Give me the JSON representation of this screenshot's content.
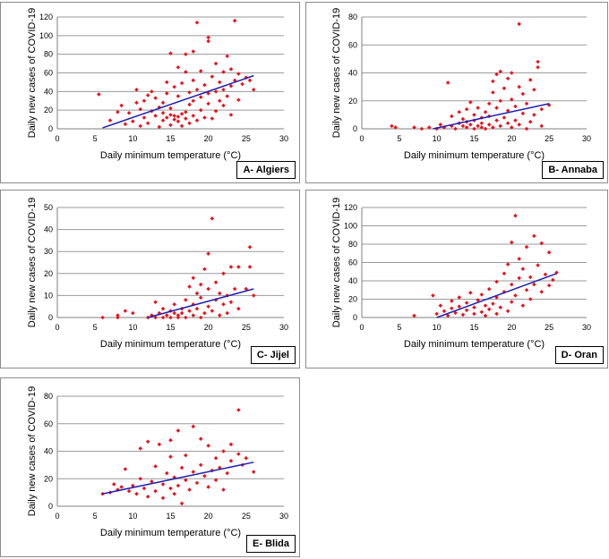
{
  "chart_data": [
    {
      "type": "scatter",
      "panel_label": "A- Algiers",
      "xlabel": "Daily minimum temperature (°C)",
      "ylabel": "Daily new cases of COVID-19",
      "xlim": [
        0,
        30
      ],
      "ylim": [
        0,
        120
      ],
      "xticks": [
        0,
        5,
        10,
        15,
        20,
        25,
        30
      ],
      "yticks": [
        0,
        20,
        40,
        60,
        80,
        100,
        120
      ],
      "colors": {
        "points": "#e8141c",
        "trend": "#1f1fb4"
      },
      "trendline": {
        "x": [
          6,
          26
        ],
        "y": [
          1,
          57
        ]
      },
      "points": [
        [
          5.5,
          37
        ],
        [
          7,
          9
        ],
        [
          8,
          18
        ],
        [
          8.5,
          25
        ],
        [
          9,
          5
        ],
        [
          9.5,
          17
        ],
        [
          10,
          8
        ],
        [
          10.5,
          42
        ],
        [
          10.5,
          28
        ],
        [
          11,
          3
        ],
        [
          11,
          21
        ],
        [
          11.5,
          12
        ],
        [
          11.5,
          30
        ],
        [
          12,
          36
        ],
        [
          12,
          6
        ],
        [
          12.5,
          19
        ],
        [
          12.5,
          40
        ],
        [
          13,
          14
        ],
        [
          13,
          33
        ],
        [
          13.5,
          2
        ],
        [
          13.5,
          23
        ],
        [
          14,
          9
        ],
        [
          14,
          17
        ],
        [
          14,
          28
        ],
        [
          14.5,
          12
        ],
        [
          14.5,
          38
        ],
        [
          14.5,
          50
        ],
        [
          15,
          4
        ],
        [
          15,
          15
        ],
        [
          15,
          22
        ],
        [
          15,
          81
        ],
        [
          15.5,
          10
        ],
        [
          15.5,
          14
        ],
        [
          15.5,
          45
        ],
        [
          16,
          8
        ],
        [
          16,
          13
        ],
        [
          16,
          35
        ],
        [
          16,
          66
        ],
        [
          16.5,
          3
        ],
        [
          16.5,
          16
        ],
        [
          16.5,
          49
        ],
        [
          17,
          11
        ],
        [
          17,
          18
        ],
        [
          17,
          80
        ],
        [
          17,
          61
        ],
        [
          17.5,
          6
        ],
        [
          17.5,
          26
        ],
        [
          17.5,
          39
        ],
        [
          18,
          14
        ],
        [
          18,
          30
        ],
        [
          18,
          52
        ],
        [
          18,
          83
        ],
        [
          18.5,
          9
        ],
        [
          18.5,
          114
        ],
        [
          18.5,
          42
        ],
        [
          19,
          20
        ],
        [
          19,
          34
        ],
        [
          19,
          62
        ],
        [
          19.5,
          12
        ],
        [
          19.5,
          47
        ],
        [
          20,
          27
        ],
        [
          20,
          98
        ],
        [
          20,
          94
        ],
        [
          20,
          38
        ],
        [
          20.5,
          11
        ],
        [
          20.5,
          56
        ],
        [
          21,
          19
        ],
        [
          21,
          40
        ],
        [
          21,
          70
        ],
        [
          21.5,
          30
        ],
        [
          21.5,
          50
        ],
        [
          22,
          25
        ],
        [
          22,
          61
        ],
        [
          22,
          42
        ],
        [
          22.5,
          35
        ],
        [
          22.5,
          78
        ],
        [
          23,
          46
        ],
        [
          23,
          64
        ],
        [
          23,
          15
        ],
        [
          23.5,
          52
        ],
        [
          23.5,
          116
        ],
        [
          24,
          31
        ],
        [
          24,
          59
        ],
        [
          24.5,
          48
        ],
        [
          25,
          55
        ],
        [
          25.5,
          52
        ],
        [
          26,
          42
        ]
      ]
    },
    {
      "type": "scatter",
      "panel_label": "B- Annaba",
      "xlabel": "Daily minimum temperature (°C)",
      "ylabel": "Daily new cases of COVID-19",
      "xlim": [
        0,
        30
      ],
      "ylim": [
        0,
        80
      ],
      "xticks": [
        0,
        5,
        10,
        15,
        20,
        25,
        30
      ],
      "yticks": [
        0,
        20,
        40,
        60,
        80
      ],
      "colors": {
        "points": "#e8141c",
        "trend": "#1f1fb4"
      },
      "trendline": {
        "x": [
          9.5,
          25
        ],
        "y": [
          0,
          18
        ]
      },
      "points": [
        [
          4,
          2
        ],
        [
          4.5,
          1
        ],
        [
          7,
          1
        ],
        [
          8,
          0
        ],
        [
          9,
          1
        ],
        [
          10,
          0
        ],
        [
          10.5,
          3
        ],
        [
          11,
          1
        ],
        [
          11.5,
          33
        ],
        [
          12,
          2
        ],
        [
          12,
          9
        ],
        [
          12.5,
          0
        ],
        [
          13,
          4
        ],
        [
          13,
          12
        ],
        [
          13.5,
          2
        ],
        [
          13.5,
          7
        ],
        [
          14,
          1
        ],
        [
          14,
          5
        ],
        [
          14,
          14
        ],
        [
          14.5,
          3
        ],
        [
          14.5,
          19
        ],
        [
          15,
          0
        ],
        [
          15,
          6
        ],
        [
          15,
          10
        ],
        [
          15.5,
          2
        ],
        [
          15.5,
          15
        ],
        [
          16,
          1
        ],
        [
          16,
          4
        ],
        [
          16,
          8
        ],
        [
          16.5,
          0
        ],
        [
          16.5,
          12
        ],
        [
          17,
          3
        ],
        [
          17,
          9
        ],
        [
          17,
          18
        ],
        [
          17.5,
          1
        ],
        [
          17.5,
          26
        ],
        [
          17.5,
          34
        ],
        [
          18,
          6
        ],
        [
          18,
          15
        ],
        [
          18,
          39
        ],
        [
          18.5,
          2
        ],
        [
          18.5,
          20
        ],
        [
          18.5,
          41
        ],
        [
          19,
          8
        ],
        [
          19,
          29
        ],
        [
          19.5,
          4
        ],
        [
          19.5,
          13
        ],
        [
          19.5,
          36
        ],
        [
          20,
          1
        ],
        [
          20,
          21
        ],
        [
          20,
          40
        ],
        [
          20.5,
          6
        ],
        [
          20.5,
          16
        ],
        [
          21,
          75
        ],
        [
          21,
          3
        ],
        [
          21,
          30
        ],
        [
          21.5,
          11
        ],
        [
          21.5,
          25
        ],
        [
          22,
          0
        ],
        [
          22,
          18
        ],
        [
          22.5,
          5
        ],
        [
          22.5,
          35
        ],
        [
          23,
          10
        ],
        [
          23,
          28
        ],
        [
          23.5,
          48
        ],
        [
          23.5,
          44
        ],
        [
          24,
          2
        ],
        [
          24,
          14
        ],
        [
          25,
          17
        ]
      ]
    },
    {
      "type": "scatter",
      "panel_label": "C- Jijel",
      "xlabel": "Daily minimum temperature (°C)",
      "ylabel": "Daily new cases of COVID-19",
      "xlim": [
        0,
        30
      ],
      "ylim": [
        0,
        50
      ],
      "xticks": [
        0,
        5,
        10,
        15,
        20,
        25,
        30
      ],
      "yticks": [
        0,
        10,
        20,
        30,
        40,
        50
      ],
      "colors": {
        "points": "#e8141c",
        "trend": "#1f1fb4"
      },
      "trendline": {
        "x": [
          12,
          26
        ],
        "y": [
          0,
          13
        ]
      },
      "points": [
        [
          6,
          0
        ],
        [
          8,
          0
        ],
        [
          8,
          1
        ],
        [
          9,
          3
        ],
        [
          10,
          2
        ],
        [
          12,
          0
        ],
        [
          12.5,
          1
        ],
        [
          13,
          0
        ],
        [
          13,
          7
        ],
        [
          13.5,
          2
        ],
        [
          14,
          0
        ],
        [
          14,
          4
        ],
        [
          14.5,
          1
        ],
        [
          15,
          0
        ],
        [
          15,
          3
        ],
        [
          15.5,
          2
        ],
        [
          15.5,
          6
        ],
        [
          16,
          0
        ],
        [
          16,
          1
        ],
        [
          16.5,
          4
        ],
        [
          16.5,
          2
        ],
        [
          17,
          0
        ],
        [
          17,
          8
        ],
        [
          17.5,
          3
        ],
        [
          17.5,
          14
        ],
        [
          18,
          1
        ],
        [
          18,
          6
        ],
        [
          18,
          18
        ],
        [
          18.5,
          11
        ],
        [
          18.5,
          4
        ],
        [
          19,
          0
        ],
        [
          19,
          9
        ],
        [
          19,
          15
        ],
        [
          19.5,
          2
        ],
        [
          19.5,
          22
        ],
        [
          20,
          5
        ],
        [
          20,
          13
        ],
        [
          20,
          29
        ],
        [
          20.5,
          45
        ],
        [
          20.5,
          3
        ],
        [
          21,
          8
        ],
        [
          21,
          16
        ],
        [
          21.5,
          1
        ],
        [
          21.5,
          11
        ],
        [
          22,
          6
        ],
        [
          22,
          20
        ],
        [
          22.5,
          2
        ],
        [
          22.5,
          10
        ],
        [
          23,
          23
        ],
        [
          23,
          7
        ],
        [
          23.5,
          13
        ],
        [
          24,
          23
        ],
        [
          24,
          4
        ],
        [
          25,
          13
        ],
        [
          25.5,
          32
        ],
        [
          25.5,
          23
        ],
        [
          26,
          10
        ]
      ]
    },
    {
      "type": "scatter",
      "panel_label": "D- Oran",
      "xlabel": "Daily minimum temperature (°C)",
      "ylabel": "Daily new cases of COVID-19",
      "xlim": [
        0,
        30
      ],
      "ylim": [
        0,
        120
      ],
      "xticks": [
        0,
        5,
        10,
        15,
        20,
        25,
        30
      ],
      "yticks": [
        0,
        20,
        40,
        60,
        80,
        100,
        120
      ],
      "colors": {
        "points": "#e8141c",
        "trend": "#1f1fb4"
      },
      "trendline": {
        "x": [
          10,
          26
        ],
        "y": [
          0,
          48
        ]
      },
      "points": [
        [
          7,
          2
        ],
        [
          9.5,
          24
        ],
        [
          10,
          4
        ],
        [
          10.5,
          13
        ],
        [
          11,
          7
        ],
        [
          11.5,
          2
        ],
        [
          12,
          10
        ],
        [
          12,
          18
        ],
        [
          12.5,
          5
        ],
        [
          13,
          12
        ],
        [
          13,
          22
        ],
        [
          13.5,
          3
        ],
        [
          14,
          8
        ],
        [
          14,
          16
        ],
        [
          14.5,
          27
        ],
        [
          15,
          4
        ],
        [
          15,
          11
        ],
        [
          15.5,
          19
        ],
        [
          16,
          6
        ],
        [
          16,
          25
        ],
        [
          16.5,
          2
        ],
        [
          16.5,
          13
        ],
        [
          17,
          9
        ],
        [
          17,
          31
        ],
        [
          17.5,
          15
        ],
        [
          18,
          4
        ],
        [
          18,
          22
        ],
        [
          18,
          39
        ],
        [
          18.5,
          11
        ],
        [
          19,
          28
        ],
        [
          19,
          48
        ],
        [
          19.5,
          7
        ],
        [
          19.5,
          58
        ],
        [
          20,
          17
        ],
        [
          20,
          36
        ],
        [
          20,
          82
        ],
        [
          20.5,
          111
        ],
        [
          20.5,
          24
        ],
        [
          21,
          43
        ],
        [
          21,
          64
        ],
        [
          21.5,
          13
        ],
        [
          21.5,
          53
        ],
        [
          22,
          30
        ],
        [
          22,
          77
        ],
        [
          22.5,
          20
        ],
        [
          22.5,
          44
        ],
        [
          23,
          89
        ],
        [
          23,
          36
        ],
        [
          23.5,
          57
        ],
        [
          24,
          28
        ],
        [
          24,
          81
        ],
        [
          24.5,
          47
        ],
        [
          25,
          35
        ],
        [
          25,
          71
        ],
        [
          25.5,
          41
        ],
        [
          26,
          49
        ]
      ]
    },
    {
      "type": "scatter",
      "panel_label": "E- Blida",
      "xlabel": "Daily minimum temperature (°C)",
      "ylabel": "Daily new cases of COVID-19",
      "xlim": [
        0,
        30
      ],
      "ylim": [
        0,
        80
      ],
      "xticks": [
        0,
        5,
        10,
        15,
        20,
        25,
        30
      ],
      "yticks": [
        0,
        20,
        40,
        60,
        80
      ],
      "colors": {
        "points": "#e8141c",
        "trend": "#1f1fb4"
      },
      "trendline": {
        "x": [
          6,
          26
        ],
        "y": [
          9,
          32
        ]
      },
      "points": [
        [
          6,
          9
        ],
        [
          7,
          10
        ],
        [
          7.5,
          16
        ],
        [
          8,
          12
        ],
        [
          8.5,
          14
        ],
        [
          9,
          27
        ],
        [
          9.5,
          11
        ],
        [
          10,
          15
        ],
        [
          10.5,
          9
        ],
        [
          11,
          42
        ],
        [
          11,
          20
        ],
        [
          11.5,
          13
        ],
        [
          12,
          47
        ],
        [
          12,
          7
        ],
        [
          12.5,
          18
        ],
        [
          13,
          11
        ],
        [
          13,
          29
        ],
        [
          13.5,
          45
        ],
        [
          14,
          16
        ],
        [
          14,
          6
        ],
        [
          14.5,
          24
        ],
        [
          15,
          13
        ],
        [
          15,
          36
        ],
        [
          15,
          48
        ],
        [
          15.5,
          9
        ],
        [
          15.5,
          21
        ],
        [
          16,
          15
        ],
        [
          16,
          55
        ],
        [
          16.5,
          28
        ],
        [
          16.5,
          2
        ],
        [
          17,
          19
        ],
        [
          17,
          37
        ],
        [
          17.5,
          12
        ],
        [
          18,
          25
        ],
        [
          18,
          58
        ],
        [
          18.5,
          17
        ],
        [
          19,
          30
        ],
        [
          19,
          49
        ],
        [
          19.5,
          22
        ],
        [
          20,
          14
        ],
        [
          20,
          44
        ],
        [
          20.5,
          26
        ],
        [
          21,
          35
        ],
        [
          21,
          19
        ],
        [
          21.5,
          28
        ],
        [
          22,
          40
        ],
        [
          22,
          12
        ],
        [
          22.5,
          24
        ],
        [
          23,
          33
        ],
        [
          23,
          45
        ],
        [
          24,
          70
        ],
        [
          24,
          38
        ],
        [
          24.5,
          30
        ],
        [
          25,
          35
        ],
        [
          26,
          25
        ]
      ]
    }
  ]
}
